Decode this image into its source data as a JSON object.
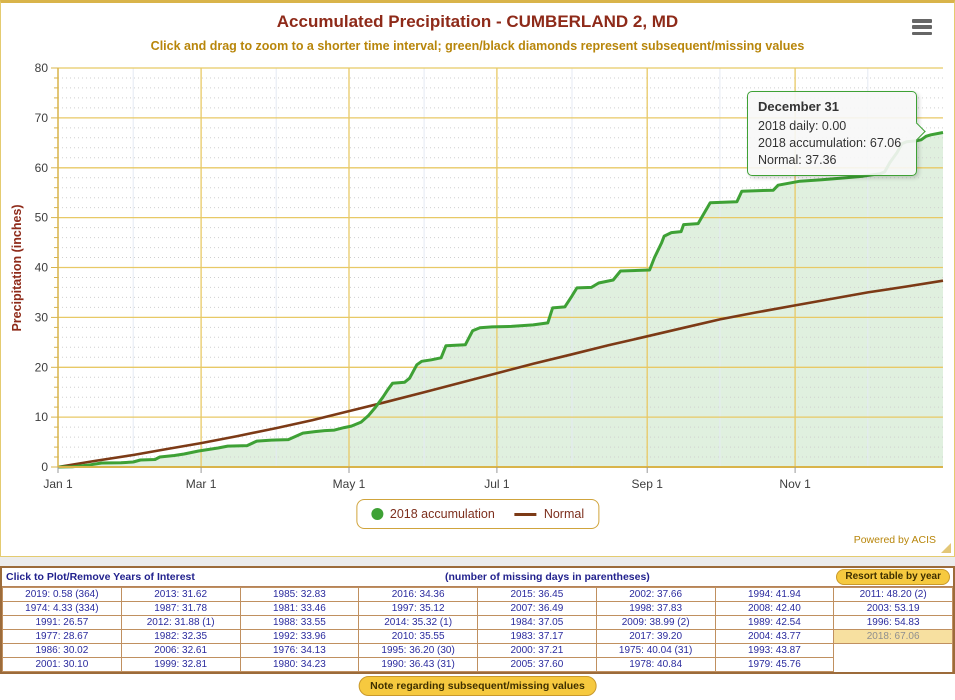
{
  "colors": {
    "gold_border": "#d9b44a",
    "grid_gold": "#e8c966",
    "title_maroon": "#8e2a19",
    "subtitle_gold": "#b8860b",
    "table_navy": "#2b2b9e",
    "highlight_bg": "#f7e0a0",
    "green": "#3ea135",
    "brown": "#7c3a16"
  },
  "chart_data": {
    "type": "area",
    "title": "Accumulated Precipitation - CUMBERLAND 2, MD",
    "subtitle": "Click and drag to zoom to a shorter time interval; green/black diamonds represent subsequent/missing values",
    "xlabel": "",
    "ylabel": "Precipitation (inches)",
    "ylim": [
      0,
      80
    ],
    "y_ticks": [
      0,
      10,
      20,
      30,
      40,
      50,
      60,
      70,
      80
    ],
    "x_tick_labels": [
      "Jan 1",
      "Mar 1",
      "May 1",
      "Jul 1",
      "Sep 1",
      "Nov 1"
    ],
    "x_tick_days": [
      0,
      59,
      120,
      181,
      243,
      304
    ],
    "grid_days_major": [
      59,
      120,
      181,
      243,
      304
    ],
    "grid_days_minor": [
      31,
      90,
      151,
      212,
      273,
      334
    ],
    "x_range_days": [
      0,
      365
    ],
    "grid": "on",
    "legend_position": "bottom",
    "series": [
      {
        "name": "2018 accumulation",
        "type": "area",
        "color": "#3ea135",
        "final_value": 67.06,
        "points": [
          [
            0,
            0
          ],
          [
            6,
            0.05
          ],
          [
            12,
            0.35
          ],
          [
            18,
            0.8
          ],
          [
            26,
            0.85
          ],
          [
            31,
            1.0
          ],
          [
            34,
            1.4
          ],
          [
            40,
            1.5
          ],
          [
            42,
            2.0
          ],
          [
            48,
            2.3
          ],
          [
            52,
            2.6
          ],
          [
            58,
            3.2
          ],
          [
            62,
            3.5
          ],
          [
            66,
            3.8
          ],
          [
            70,
            4.2
          ],
          [
            78,
            4.3
          ],
          [
            82,
            5.2
          ],
          [
            88,
            5.4
          ],
          [
            95,
            5.5
          ],
          [
            101,
            6.8
          ],
          [
            106,
            7.1
          ],
          [
            110,
            7.3
          ],
          [
            114,
            7.4
          ],
          [
            118,
            7.9
          ],
          [
            121,
            8.2
          ],
          [
            125,
            9.0
          ],
          [
            128,
            10.3
          ],
          [
            131,
            12.0
          ],
          [
            134,
            14.0
          ],
          [
            136,
            15.5
          ],
          [
            138,
            16.8
          ],
          [
            143,
            17.0
          ],
          [
            145,
            17.8
          ],
          [
            148,
            20.5
          ],
          [
            150,
            21.2
          ],
          [
            154,
            21.5
          ],
          [
            158,
            21.9
          ],
          [
            160,
            24.3
          ],
          [
            168,
            24.5
          ],
          [
            171,
            27.3
          ],
          [
            174,
            27.9
          ],
          [
            179,
            28.1
          ],
          [
            187,
            28.2
          ],
          [
            196,
            28.5
          ],
          [
            202,
            28.9
          ],
          [
            204,
            31.9
          ],
          [
            209,
            32.1
          ],
          [
            212,
            34.3
          ],
          [
            214,
            35.9
          ],
          [
            220,
            36.0
          ],
          [
            223,
            36.9
          ],
          [
            229,
            37.5
          ],
          [
            232,
            39.3
          ],
          [
            244,
            39.5
          ],
          [
            246,
            42.0
          ],
          [
            249,
            45.0
          ],
          [
            250,
            46.3
          ],
          [
            253,
            47.0
          ],
          [
            257,
            47.2
          ],
          [
            258,
            48.6
          ],
          [
            264,
            48.8
          ],
          [
            266,
            50.5
          ],
          [
            269,
            53.0
          ],
          [
            280,
            53.2
          ],
          [
            282,
            55.3
          ],
          [
            295,
            55.5
          ],
          [
            297,
            56.5
          ],
          [
            306,
            57.3
          ],
          [
            315,
            57.6
          ],
          [
            325,
            58.0
          ],
          [
            332,
            58.3
          ],
          [
            339,
            58.8
          ],
          [
            341,
            59.2
          ],
          [
            343,
            61.0
          ],
          [
            346,
            63.0
          ],
          [
            348,
            64.8
          ],
          [
            350,
            65.2
          ],
          [
            354,
            65.4
          ],
          [
            356,
            65.6
          ],
          [
            358,
            66.3
          ],
          [
            360,
            66.6
          ],
          [
            365,
            67.06
          ]
        ]
      },
      {
        "name": "Normal",
        "type": "line",
        "color": "#7c3a16",
        "final_value": 37.36,
        "points": [
          [
            0,
            0
          ],
          [
            15,
            1.2
          ],
          [
            31,
            2.4
          ],
          [
            45,
            3.6
          ],
          [
            59,
            4.8
          ],
          [
            74,
            6.2
          ],
          [
            90,
            7.8
          ],
          [
            105,
            9.4
          ],
          [
            120,
            11.2
          ],
          [
            135,
            13.0
          ],
          [
            151,
            15.0
          ],
          [
            166,
            16.9
          ],
          [
            181,
            18.8
          ],
          [
            196,
            20.7
          ],
          [
            212,
            22.6
          ],
          [
            227,
            24.4
          ],
          [
            243,
            26.2
          ],
          [
            258,
            27.9
          ],
          [
            273,
            29.6
          ],
          [
            288,
            31.0
          ],
          [
            304,
            32.4
          ],
          [
            319,
            33.7
          ],
          [
            334,
            35.0
          ],
          [
            350,
            36.2
          ],
          [
            365,
            37.36
          ]
        ]
      }
    ]
  },
  "tooltip": {
    "date": "December 31",
    "lines": [
      "2018 daily: 0.00",
      "2018 accumulation: 67.06",
      "Normal: 37.36"
    ]
  },
  "footer": {
    "powered_by": "Powered by ACIS"
  },
  "table": {
    "header_left": "Click to Plot/Remove Years of Interest",
    "header_center": "(number of missing days in parentheses)",
    "resort_button": "Resort table by year",
    "highlight": "2018: 67.06",
    "rows": [
      [
        "2019: 0.58 (364)",
        "2013: 31.62",
        "1985: 32.83",
        "2016: 34.36",
        "2015: 36.45",
        "2002: 37.66",
        "1994: 41.94",
        "2011: 48.20 (2)"
      ],
      [
        "1974: 4.33 (334)",
        "1987: 31.78",
        "1981: 33.46",
        "1997: 35.12",
        "2007: 36.49",
        "1998: 37.83",
        "2008: 42.40",
        "2003: 53.19"
      ],
      [
        "1991: 26.57",
        "2012: 31.88 (1)",
        "1988: 33.55",
        "2014: 35.32 (1)",
        "1984: 37.05",
        "2009: 38.99 (2)",
        "1989: 42.54",
        "1996: 54.83"
      ],
      [
        "1977: 28.67",
        "1982: 32.35",
        "1992: 33.96",
        "2010: 35.55",
        "1983: 37.17",
        "2017: 39.20",
        "2004: 43.77",
        "2018: 67.06"
      ],
      [
        "1986: 30.02",
        "2006: 32.61",
        "1976: 34.13",
        "1995: 36.20 (30)",
        "2000: 37.21",
        "1975: 40.04 (31)",
        "1993: 43.87",
        ""
      ],
      [
        "2001: 30.10",
        "1999: 32.81",
        "1980: 34.23",
        "1990: 36.43 (31)",
        "2005: 37.60",
        "1978: 40.84",
        "1979: 45.76",
        ""
      ]
    ]
  },
  "note_button": "Note regarding subsequent/missing values"
}
